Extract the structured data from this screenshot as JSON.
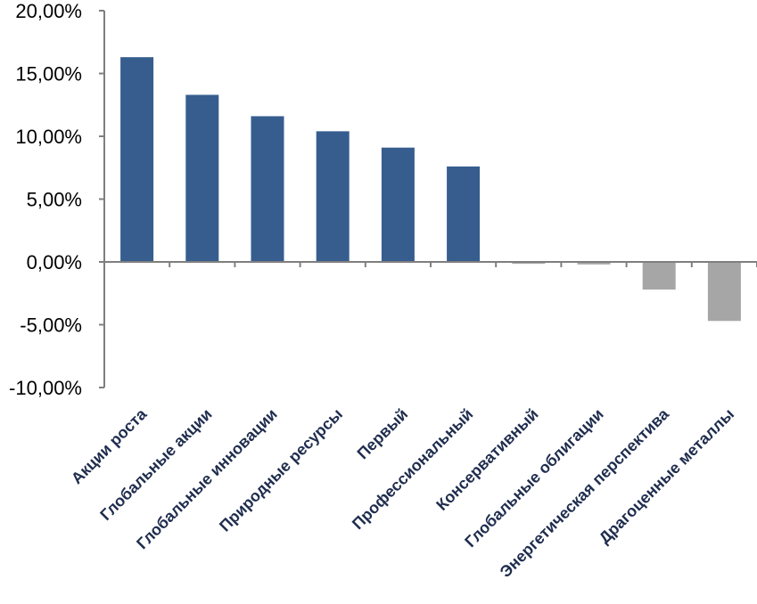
{
  "chart_data": {
    "type": "bar",
    "title": "",
    "xlabel": "",
    "ylabel": "",
    "categories": [
      "Акции роста",
      "Глобальные акции",
      "Глобальные инновации",
      "Природные ресурсы",
      "Первый",
      "Профессиональный",
      "Консервативный",
      "Глобальные облигации",
      "Энергетическая перспектива",
      "Драгоценные  металлы"
    ],
    "values": [
      16.3,
      13.3,
      11.6,
      10.4,
      9.1,
      7.6,
      -0.15,
      -0.2,
      -2.2,
      -4.7
    ],
    "ylim": [
      -10,
      20
    ],
    "yticks": [
      20,
      15,
      10,
      5,
      0,
      -5,
      -10
    ],
    "ytick_labels": [
      "20,00%",
      "15,00%",
      "10,00%",
      "5,00%",
      "0,00%",
      "-5,00%",
      "-10,00%"
    ],
    "grid": false,
    "legend": "none",
    "colors": {
      "positive": "#375d8f",
      "negative": "#a6a6a6",
      "axis": "#7f7f7f",
      "tick_label": "#000000",
      "category_label": "#1f2d4e"
    }
  }
}
